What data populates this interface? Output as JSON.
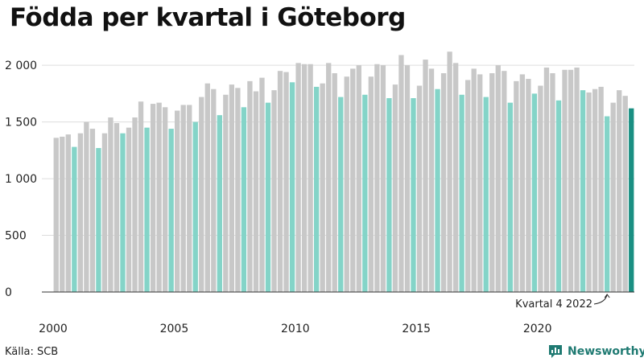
{
  "title": "Födda per kvartal i Göteborg",
  "source": "Källa: SCB",
  "brand": "Newsworthy",
  "colors": {
    "bar_default": "#c8c8c8",
    "bar_q4": "#84d4c8",
    "bar_highlight": "#1a8f82",
    "grid": "#dddddd",
    "baseline": "#333333",
    "text": "#222222",
    "brand": "#1f7a72"
  },
  "chart_data": {
    "type": "bar",
    "title": "Födda per kvartal i Göteborg",
    "xlabel": "",
    "ylabel": "",
    "ylim": [
      0,
      2150
    ],
    "y_ticks": [
      0,
      500,
      1000,
      1500,
      2000
    ],
    "y_tick_labels": [
      "0",
      "500",
      "1 000",
      "1 500",
      "2 000"
    ],
    "x_ticks": [
      {
        "year": 2000,
        "label": "2000"
      },
      {
        "year": 2005,
        "label": "2005"
      },
      {
        "year": 2010,
        "label": "2010"
      },
      {
        "year": 2015,
        "label": "2015"
      },
      {
        "year": 2020,
        "label": "2020"
      }
    ],
    "start_year": 2000,
    "periods_per_year": 4,
    "series": [
      {
        "name": "Födda",
        "values": [
          1360,
          1370,
          1390,
          1280,
          1400,
          1500,
          1440,
          1270,
          1400,
          1540,
          1490,
          1400,
          1450,
          1540,
          1680,
          1450,
          1660,
          1670,
          1630,
          1440,
          1600,
          1650,
          1650,
          1500,
          1720,
          1840,
          1790,
          1560,
          1740,
          1830,
          1800,
          1630,
          1860,
          1770,
          1890,
          1670,
          1780,
          1950,
          1940,
          1850,
          2020,
          2010,
          2010,
          1810,
          1840,
          2020,
          1930,
          1720,
          1900,
          1970,
          2000,
          1740,
          1900,
          2010,
          2000,
          1710,
          1830,
          2090,
          2000,
          1710,
          1820,
          2050,
          1970,
          1790,
          1930,
          2120,
          2020,
          1740,
          1870,
          1970,
          1920,
          1720,
          1930,
          2000,
          1950,
          1670,
          1860,
          1920,
          1880,
          1750,
          1820,
          1980,
          1930,
          1690,
          1960,
          1960,
          1980,
          1780,
          1760,
          1790,
          1810,
          1550,
          1670,
          1780,
          1730,
          1620
        ]
      }
    ],
    "annotation": "Kvartal 4 2022"
  }
}
